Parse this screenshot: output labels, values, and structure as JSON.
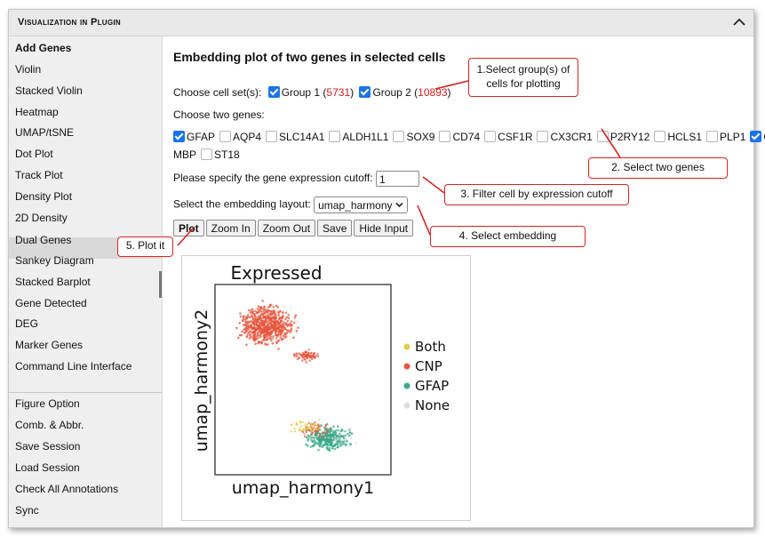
{
  "panel": {
    "title": "Visualization in Plugin",
    "collapse_icon": "chevron-up-icon"
  },
  "sidebar": {
    "items": [
      {
        "label": "Add Genes",
        "bold": true
      },
      {
        "label": "Violin"
      },
      {
        "label": "Stacked Violin"
      },
      {
        "label": "Heatmap"
      },
      {
        "label": "UMAP/tSNE"
      },
      {
        "label": "Dot Plot"
      },
      {
        "label": "Track Plot"
      },
      {
        "label": "Density Plot"
      },
      {
        "label": "2D Density"
      },
      {
        "label": "Dual Genes",
        "selected": true
      },
      {
        "label": "Sankey Diagram"
      },
      {
        "label": "Stacked Barplot"
      },
      {
        "label": "Gene Detected"
      },
      {
        "label": "DEG"
      },
      {
        "label": "Marker Genes"
      },
      {
        "label": "Command Line Interface"
      }
    ],
    "lower_items": [
      {
        "label": "Figure Option"
      },
      {
        "label": "Comb. & Abbr."
      },
      {
        "label": "Save Session"
      },
      {
        "label": "Load Session"
      },
      {
        "label": "Check All Annotations"
      },
      {
        "label": "Sync"
      }
    ]
  },
  "main": {
    "heading": "Embedding plot of two genes in selected cells",
    "cellset_label": "Choose cell set(s):",
    "groups": [
      {
        "name": "Group 1",
        "count": "5731",
        "checked": true
      },
      {
        "name": "Group 2",
        "count": "10893",
        "checked": true
      }
    ],
    "genes_label": "Choose two genes:",
    "genes": [
      {
        "name": "GFAP",
        "checked": true
      },
      {
        "name": "AQP4",
        "checked": false
      },
      {
        "name": "SLC14A1",
        "checked": false
      },
      {
        "name": "ALDH1L1",
        "checked": false
      },
      {
        "name": "SOX9",
        "checked": false
      },
      {
        "name": "CD74",
        "checked": false
      },
      {
        "name": "CSF1R",
        "checked": false
      },
      {
        "name": "CX3CR1",
        "checked": false
      },
      {
        "name": "P2RY12",
        "checked": false
      },
      {
        "name": "HCLS1",
        "checked": false
      },
      {
        "name": "PLP1",
        "checked": false
      },
      {
        "name": "CNP",
        "checked": true
      },
      {
        "name": "MBP",
        "checked": false
      },
      {
        "name": "ST18",
        "checked": false
      }
    ],
    "cutoff_label": "Please specify the gene expression cutoff:",
    "cutoff_value": "1",
    "layout_label": "Select the embedding layout:",
    "layout_value": "umap_harmony",
    "buttons": {
      "plot": "Plot",
      "zoom_in": "Zoom In",
      "zoom_out": "Zoom Out",
      "save": "Save",
      "hide_input": "Hide Input"
    }
  },
  "plot": {
    "title": "Expressed",
    "xlabel": "umap_harmony1",
    "ylabel": "umap_harmony2",
    "legend": [
      {
        "label": "Both",
        "color": "#e6c84a"
      },
      {
        "label": "CNP",
        "color": "#e8553c"
      },
      {
        "label": "GFAP",
        "color": "#3aa98a"
      },
      {
        "label": "None",
        "color": "#dcdcdc"
      }
    ]
  },
  "callouts": {
    "c1": "1.Select group(s) of cells for plotting",
    "c2": "2. Select two genes",
    "c3": "3. Filter cell by expression cutoff",
    "c4": "4. Select embedding",
    "c5": "5. Plot it"
  },
  "colors": {
    "callout_border": "#dd2222",
    "count_red": "#d61a1a",
    "checkbox_blue": "#1a73e8"
  }
}
